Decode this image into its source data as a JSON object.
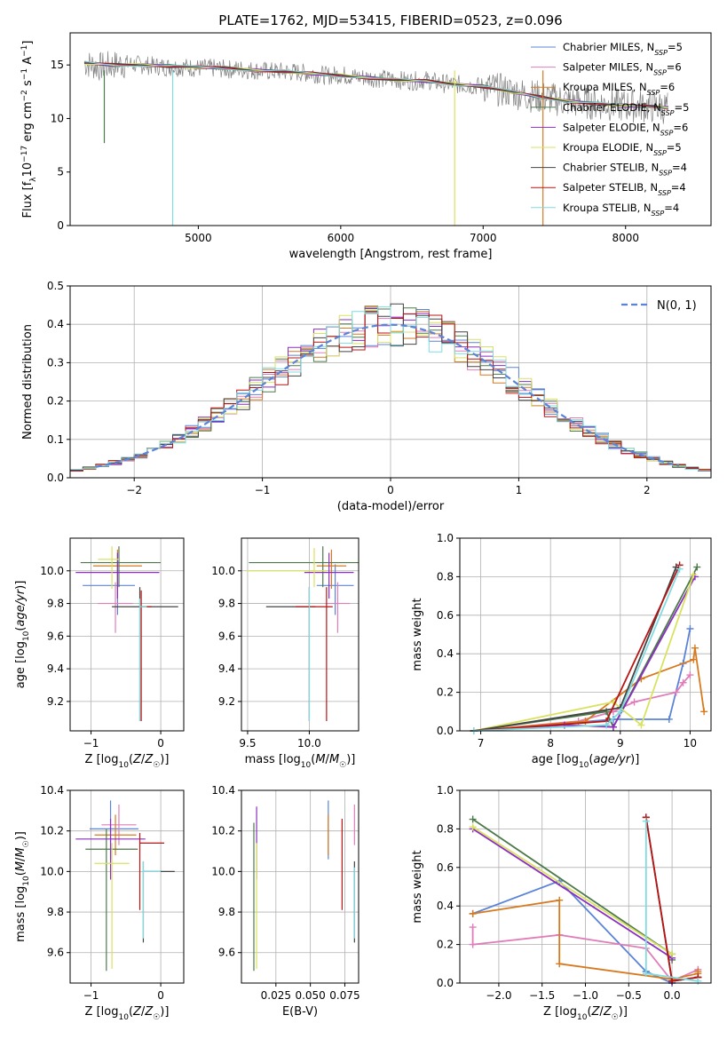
{
  "figure": {
    "title": "PLATE=1762, MJD=53415, FIBERID=0523, z=0.096",
    "colors": {
      "Chabrier MILES": "#5b84d8",
      "Salpeter MILES": "#e07db9",
      "Kroupa MILES": "#d77a1f",
      "Chabrier ELODIE": "#4d7a4a",
      "Salpeter ELODIE": "#8a2fc0",
      "Kroupa ELODIE": "#d9e260",
      "Chabrier STELIB": "#444444",
      "Salpeter STELIB": "#b81414",
      "Kroupa STELIB": "#7fdbe0",
      "data": "#808080"
    }
  },
  "chart_data": [
    {
      "id": "spectrum",
      "type": "line",
      "title": "PLATE=1762, MJD=53415, FIBERID=0523, z=0.096",
      "xlabel": "wavelength [Angstrom, rest frame]",
      "ylabel": "Flux [f_λ10^-17 erg cm^-2 s^-1 A^-1]",
      "xlim": [
        4100,
        8600
      ],
      "ylim": [
        0,
        18
      ],
      "xticks": [
        5000,
        6000,
        7000,
        8000
      ],
      "yticks": [
        0,
        5,
        10,
        15
      ],
      "legend_placement": "upper right",
      "legend": [
        {
          "label": "Chabrier MILES, N",
          "sub": "SSP",
          "eq": "=5"
        },
        {
          "label": "Salpeter MILES, N",
          "sub": "SSP",
          "eq": "=6"
        },
        {
          "label": "Kroupa MILES, N",
          "sub": "SSP",
          "eq": "=6"
        },
        {
          "label": "Chabrier ELODIE, N",
          "sub": "SSP",
          "eq": "=5"
        },
        {
          "label": "Salpeter ELODIE, N",
          "sub": "SSP",
          "eq": "=6"
        },
        {
          "label": "Kroupa ELODIE, N",
          "sub": "SSP",
          "eq": "=5"
        },
        {
          "label": "Chabrier STELIB, N",
          "sub": "SSP",
          "eq": "=4"
        },
        {
          "label": "Salpeter STELIB, N",
          "sub": "SSP",
          "eq": "=4"
        },
        {
          "label": "Kroupa STELIB, N",
          "sub": "SSP",
          "eq": "=4"
        }
      ],
      "data_series": {
        "name": "data",
        "x": [
          4200,
          4300,
          4400,
          4500,
          4600,
          4700,
          4800,
          4900,
          5000,
          5100,
          5200,
          5300,
          5400,
          5500,
          5600,
          5700,
          5800,
          5900,
          6000,
          6100,
          6200,
          6300,
          6400,
          6500,
          6600,
          6700,
          6800,
          6900,
          7000,
          7100,
          7200,
          7300,
          7400,
          7500,
          7600,
          7700,
          7800,
          7900,
          8000,
          8100,
          8200,
          8300
        ],
        "y": [
          15.2,
          14.8,
          15.0,
          15.1,
          15.0,
          14.9,
          14.8,
          14.8,
          14.7,
          14.7,
          14.6,
          14.6,
          14.5,
          14.4,
          14.4,
          14.3,
          14.2,
          14.0,
          14.1,
          13.9,
          13.8,
          13.7,
          13.6,
          13.5,
          13.6,
          13.3,
          13.2,
          13.1,
          13.0,
          12.7,
          12.5,
          12.2,
          12.0,
          11.8,
          11.6,
          11.5,
          11.4,
          11.3,
          11.2,
          11.2,
          11.1,
          11.0
        ]
      },
      "model_series": {
        "x": [
          4200,
          4400,
          4600,
          4800,
          5000,
          5200,
          5400,
          5600,
          5800,
          6000,
          6200,
          6400,
          6600,
          6800,
          7000,
          7200,
          7400,
          7600,
          7800,
          8000,
          8200,
          8300
        ],
        "y": [
          15.2,
          15.0,
          15.0,
          14.9,
          14.8,
          14.7,
          14.5,
          14.4,
          14.2,
          14.0,
          13.8,
          13.6,
          13.5,
          13.2,
          13.0,
          12.5,
          12.0,
          11.6,
          11.4,
          11.2,
          11.1,
          11.0
        ]
      }
    },
    {
      "id": "residuals",
      "type": "bar",
      "xlabel": "(data-model)/error",
      "ylabel": "Normed distribution",
      "xlim": [
        -2.5,
        2.5
      ],
      "ylim": [
        0,
        0.5
      ],
      "xticks": [
        -2,
        -1,
        0,
        1,
        2
      ],
      "yticks": [
        0.0,
        0.1,
        0.2,
        0.3,
        0.4,
        0.5
      ],
      "legend_placement": "upper right",
      "gaussian_label": "N(0, 1)",
      "bin_edges_step": 0.1,
      "grid": true
    },
    {
      "id": "age_vs_Z",
      "type": "scatter",
      "xlabel": "Z [log10(Z/Z☉)]",
      "ylabel": "age [log10(age/yr)]",
      "xlim": [
        -1.3,
        0.33
      ],
      "ylim": [
        9.02,
        10.2
      ],
      "xticks": [
        -1,
        0
      ],
      "yticks": [
        9.2,
        9.4,
        9.6,
        9.8,
        10.0
      ],
      "points": [
        {
          "series": "Chabrier MILES",
          "x": -0.62,
          "y": 9.91,
          "xerr": [
            0.5,
            0.25
          ],
          "yerr": [
            0.18,
            0.13
          ]
        },
        {
          "series": "Salpeter MILES",
          "x": -0.65,
          "y": 9.8,
          "xerr": [
            0.25,
            0.25
          ],
          "yerr": [
            0.18,
            0.13
          ]
        },
        {
          "series": "Kroupa MILES",
          "x": -0.62,
          "y": 10.03,
          "xerr": [
            0.35,
            0.35
          ],
          "yerr": [
            0.14,
            0.1
          ]
        },
        {
          "series": "Chabrier ELODIE",
          "x": -0.6,
          "y": 10.05,
          "xerr": [
            0.55,
            0.6
          ],
          "yerr": [
            0.15,
            0.1
          ]
        },
        {
          "series": "Salpeter ELODIE",
          "x": -0.62,
          "y": 9.99,
          "xerr": [
            0.6,
            0.6
          ],
          "yerr": [
            0.16,
            0.12
          ]
        },
        {
          "series": "Kroupa ELODIE",
          "x": -0.7,
          "y": 10.07,
          "xerr": [
            0.2,
            0.1
          ],
          "yerr": [
            0.18,
            0.08
          ]
        },
        {
          "series": "Chabrier STELIB",
          "x": -0.3,
          "y": 9.78,
          "xerr": [
            0.4,
            0.55
          ],
          "yerr": [
            0.7,
            0.12
          ]
        },
        {
          "series": "Salpeter STELIB",
          "x": -0.28,
          "y": 9.78,
          "xerr": [
            0.0,
            0.15
          ],
          "yerr": [
            0.7,
            0.1
          ]
        },
        {
          "series": "Kroupa STELIB",
          "x": -0.3,
          "y": 9.78,
          "xerr": [
            0.0,
            0.1
          ],
          "yerr": [
            0.7,
            0.05
          ]
        }
      ]
    },
    {
      "id": "age_vs_mass",
      "type": "scatter",
      "xlabel": "mass [log10(M/M☉)]",
      "ylabel": "",
      "xlim": [
        9.45,
        10.4
      ],
      "ylim": [
        9.02,
        10.2
      ],
      "xticks": [
        9.5,
        10.0
      ],
      "yticks": [
        9.2,
        9.4,
        9.6,
        9.8,
        10.0
      ],
      "points": [
        {
          "series": "Chabrier MILES",
          "x": 10.21,
          "y": 9.91,
          "xerr": [
            0.15,
            0.15
          ],
          "yerr": [
            0.18,
            0.13
          ]
        },
        {
          "series": "Salpeter MILES",
          "x": 10.23,
          "y": 9.8,
          "xerr": [
            0.1,
            0.1
          ],
          "yerr": [
            0.18,
            0.13
          ]
        },
        {
          "series": "Kroupa MILES",
          "x": 10.18,
          "y": 10.03,
          "xerr": [
            0.12,
            0.12
          ],
          "yerr": [
            0.14,
            0.1
          ]
        },
        {
          "series": "Chabrier ELODIE",
          "x": 10.11,
          "y": 10.05,
          "xerr": [
            0.6,
            0.6
          ],
          "yerr": [
            0.15,
            0.1
          ]
        },
        {
          "series": "Salpeter ELODIE",
          "x": 10.16,
          "y": 9.99,
          "xerr": [
            0.2,
            0.2
          ],
          "yerr": [
            0.16,
            0.12
          ]
        },
        {
          "series": "Kroupa ELODIE",
          "x": 10.04,
          "y": 10.0,
          "xerr": [
            0.55,
            0.1
          ],
          "yerr": [
            0.1,
            0.14
          ]
        },
        {
          "series": "Chabrier STELIB",
          "x": 10.0,
          "y": 9.78,
          "xerr": [
            0.35,
            0.05
          ],
          "yerr": [
            0.7,
            0.12
          ]
        },
        {
          "series": "Salpeter STELIB",
          "x": 10.14,
          "y": 9.78,
          "xerr": [
            0.25,
            0.05
          ],
          "yerr": [
            0.7,
            0.12
          ]
        },
        {
          "series": "Kroupa STELIB",
          "x": 10.0,
          "y": 9.78,
          "xerr": [
            0.0,
            0.0
          ],
          "yerr": [
            0.7,
            0.12
          ]
        }
      ]
    },
    {
      "id": "sfh_age",
      "type": "line",
      "xlabel": "age [log10(age/yr)]",
      "ylabel": "mass weight",
      "xlim": [
        6.7,
        10.3
      ],
      "ylim": [
        0,
        1.0
      ],
      "xticks": [
        7,
        8,
        9,
        10
      ],
      "yticks": [
        0.0,
        0.2,
        0.4,
        0.6,
        0.8,
        1.0
      ],
      "grid": true,
      "series": [
        {
          "name": "Chabrier MILES",
          "x": [
            6.9,
            8.9,
            9.7,
            9.9,
            10.0
          ],
          "y": [
            0.0,
            0.06,
            0.06,
            0.35,
            0.53
          ]
        },
        {
          "name": "Salpeter MILES",
          "x": [
            6.9,
            8.4,
            8.9,
            9.2,
            9.8,
            9.9,
            10.0
          ],
          "y": [
            0.0,
            0.05,
            0.1,
            0.15,
            0.2,
            0.25,
            0.29
          ]
        },
        {
          "name": "Kroupa MILES",
          "x": [
            6.9,
            8.5,
            9.3,
            10.05,
            10.07,
            10.2
          ],
          "y": [
            0.0,
            0.05,
            0.27,
            0.37,
            0.43,
            0.1
          ]
        },
        {
          "name": "Chabrier ELODIE",
          "x": [
            6.9,
            8.8,
            8.9,
            10.1
          ],
          "y": [
            0.0,
            0.1,
            0.02,
            0.85
          ]
        },
        {
          "name": "Salpeter ELODIE",
          "x": [
            6.9,
            8.2,
            8.9,
            10.07
          ],
          "y": [
            0.0,
            0.03,
            0.02,
            0.8
          ]
        },
        {
          "name": "Kroupa ELODIE",
          "x": [
            6.9,
            8.9,
            9.3,
            10.05
          ],
          "y": [
            0.0,
            0.15,
            0.03,
            0.81
          ]
        },
        {
          "name": "Chabrier STELIB",
          "x": [
            6.9,
            9.0,
            9.8
          ],
          "y": [
            0.0,
            0.12,
            0.85
          ]
        },
        {
          "name": "Salpeter STELIB",
          "x": [
            6.9,
            8.8,
            9.85
          ],
          "y": [
            0.0,
            0.05,
            0.86
          ]
        },
        {
          "name": "Kroupa STELIB",
          "x": [
            6.9,
            8.8,
            9.0,
            9.85
          ],
          "y": [
            0.0,
            0.03,
            0.1,
            0.84
          ]
        }
      ]
    },
    {
      "id": "mass_vs_Z",
      "type": "scatter",
      "xlabel": "Z [log10(Z/Z☉)]",
      "ylabel": "mass [log10(M/M☉)]",
      "xlim": [
        -1.3,
        0.33
      ],
      "ylim": [
        9.45,
        10.4
      ],
      "xticks": [
        -1,
        0
      ],
      "yticks": [
        9.6,
        9.8,
        10.0,
        10.2,
        10.4
      ],
      "points": [
        {
          "series": "Chabrier MILES",
          "x": -0.72,
          "y": 10.21,
          "xerr": [
            0.3,
            0.4
          ],
          "yerr": [
            0.15,
            0.14
          ]
        },
        {
          "series": "Salpeter MILES",
          "x": -0.6,
          "y": 10.23,
          "xerr": [
            0.25,
            0.25
          ],
          "yerr": [
            0.1,
            0.1
          ]
        },
        {
          "series": "Kroupa MILES",
          "x": -0.65,
          "y": 10.18,
          "xerr": [
            0.3,
            0.3
          ],
          "yerr": [
            0.1,
            0.1
          ]
        },
        {
          "series": "Chabrier ELODIE",
          "x": -0.78,
          "y": 10.11,
          "xerr": [
            0.3,
            0.45
          ],
          "yerr": [
            0.6,
            0.1
          ]
        },
        {
          "series": "Salpeter ELODIE",
          "x": -0.72,
          "y": 10.16,
          "xerr": [
            0.5,
            0.5
          ],
          "yerr": [
            0.2,
            0.1
          ]
        },
        {
          "series": "Kroupa ELODIE",
          "x": -0.7,
          "y": 10.04,
          "xerr": [
            0.25,
            0.25
          ],
          "yerr": [
            0.52,
            0.1
          ]
        },
        {
          "series": "Chabrier STELIB",
          "x": -0.25,
          "y": 10.0,
          "xerr": [
            0.0,
            0.45
          ],
          "yerr": [
            0.35,
            0.05
          ]
        },
        {
          "series": "Salpeter STELIB",
          "x": -0.3,
          "y": 10.14,
          "xerr": [
            0.0,
            0.35
          ],
          "yerr": [
            0.33,
            0.05
          ]
        },
        {
          "series": "Kroupa STELIB",
          "x": -0.25,
          "y": 10.0,
          "xerr": [
            0.0,
            0.25
          ],
          "yerr": [
            0.33,
            0.05
          ]
        }
      ]
    },
    {
      "id": "mass_vs_ebv",
      "type": "scatter",
      "xlabel": "E(B-V)",
      "ylabel": "",
      "xlim": [
        0.0,
        0.085
      ],
      "ylim": [
        9.45,
        10.4
      ],
      "xticks": [
        0.025,
        0.05,
        0.075
      ],
      "xticklabels": [
        "0.025",
        "0.050",
        "0.075"
      ],
      "yticks": [
        9.6,
        9.8,
        10.0,
        10.2,
        10.4
      ],
      "points": [
        {
          "series": "Chabrier MILES",
          "x": 0.063,
          "y": 10.21,
          "yerr": [
            0.15,
            0.14
          ]
        },
        {
          "series": "Salpeter MILES",
          "x": 0.082,
          "y": 10.23,
          "yerr": [
            0.1,
            0.1
          ]
        },
        {
          "series": "Kroupa MILES",
          "x": 0.063,
          "y": 10.18,
          "yerr": [
            0.1,
            0.1
          ]
        },
        {
          "series": "Chabrier ELODIE",
          "x": 0.009,
          "y": 10.11,
          "yerr": [
            0.6,
            0.13
          ]
        },
        {
          "series": "Salpeter ELODIE",
          "x": 0.011,
          "y": 10.16,
          "yerr": [
            0.2,
            0.16
          ]
        },
        {
          "series": "Kroupa ELODIE",
          "x": 0.011,
          "y": 10.04,
          "yerr": [
            0.52,
            0.1
          ]
        },
        {
          "series": "Chabrier STELIB",
          "x": 0.082,
          "y": 10.0,
          "yerr": [
            0.35,
            0.05
          ]
        },
        {
          "series": "Salpeter STELIB",
          "x": 0.073,
          "y": 10.14,
          "yerr": [
            0.33,
            0.12
          ]
        },
        {
          "series": "Kroupa STELIB",
          "x": 0.082,
          "y": 10.0,
          "yerr": [
            0.33,
            0.02
          ]
        }
      ]
    },
    {
      "id": "sfh_Z",
      "type": "line",
      "xlabel": "Z [log10(Z/Z☉)]",
      "ylabel": "mass weight",
      "xlim": [
        -2.45,
        0.45
      ],
      "ylim": [
        0,
        1.0
      ],
      "xticks": [
        -2.0,
        -1.5,
        -1.0,
        -0.5,
        0.0
      ],
      "yticks": [
        0.0,
        0.2,
        0.4,
        0.6,
        0.8,
        1.0
      ],
      "grid": true,
      "series": [
        {
          "name": "Chabrier MILES",
          "x": [
            -2.3,
            -1.3,
            -0.3,
            -0.3,
            0.0,
            0.0
          ],
          "y": [
            0.36,
            0.53,
            0.06,
            0.06,
            0.0,
            0.0
          ]
        },
        {
          "name": "Salpeter MILES",
          "x": [
            -2.3,
            -2.3,
            -1.3,
            -0.3,
            0.0,
            0.3
          ],
          "y": [
            0.29,
            0.2,
            0.25,
            0.18,
            0.01,
            0.07
          ]
        },
        {
          "name": "Kroupa MILES",
          "x": [
            -2.3,
            -1.3,
            -1.3,
            0.0,
            0.3,
            0.3
          ],
          "y": [
            0.36,
            0.43,
            0.1,
            0.02,
            0.05,
            0.06
          ]
        },
        {
          "name": "Chabrier ELODIE",
          "x": [
            -2.3,
            0.0,
            0.0
          ],
          "y": [
            0.85,
            0.15,
            0.12
          ]
        },
        {
          "name": "Salpeter ELODIE",
          "x": [
            -2.3,
            0.0
          ],
          "y": [
            0.8,
            0.13
          ]
        },
        {
          "name": "Kroupa ELODIE",
          "x": [
            -2.3,
            0.0
          ],
          "y": [
            0.81,
            0.15
          ]
        },
        {
          "name": "Chabrier STELIB",
          "x": [
            -0.3,
            0.0,
            0.3
          ],
          "y": [
            0.86,
            0.01,
            0.03
          ]
        },
        {
          "name": "Salpeter STELIB",
          "x": [
            -0.3,
            0.0,
            0.3
          ],
          "y": [
            0.86,
            0.01,
            0.03
          ]
        },
        {
          "name": "Kroupa STELIB",
          "x": [
            -0.3,
            -0.3,
            0.3
          ],
          "y": [
            0.84,
            0.05,
            0.01
          ]
        }
      ]
    }
  ]
}
